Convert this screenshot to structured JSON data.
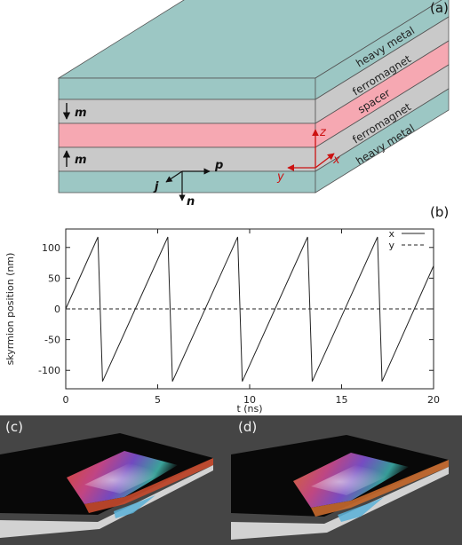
{
  "panel_a": {
    "label": "(a)",
    "layers": [
      "heavy metal",
      "ferromagnet",
      "spacer",
      "ferromagnet",
      "heavy metal"
    ],
    "vectors": {
      "m": "m",
      "p": "p",
      "j": "j",
      "n": "n"
    },
    "axes": {
      "x": "x",
      "y": "y",
      "z": "z"
    },
    "colors": {
      "heavy_metal": "#9cc7c4",
      "ferromagnet": "#c9c9c9",
      "spacer": "#f6a8b2",
      "axes": "#cc1111"
    }
  },
  "panel_b": {
    "label": "(b)"
  },
  "panel_c": {
    "label": "(c)"
  },
  "panel_d": {
    "label": "(d)"
  },
  "chart_data": {
    "type": "line",
    "title": "",
    "xlabel": "t (ns)",
    "ylabel": "skyrmion position (nm)",
    "xlim": [
      0,
      20
    ],
    "ylim": [
      -130,
      130
    ],
    "xticks": [
      0,
      5,
      10,
      15,
      20
    ],
    "yticks": [
      -100,
      -50,
      0,
      50,
      100
    ],
    "xtick_labels": [
      "0",
      "5",
      "10",
      "15",
      "20"
    ],
    "ytick_labels": [
      "-100",
      "-50",
      "0",
      "50",
      "100"
    ],
    "legend_position": "top-right",
    "series": [
      {
        "name": "x",
        "style": "solid",
        "x": [
          0,
          1.75,
          2.0,
          5.55,
          5.8,
          9.35,
          9.6,
          13.15,
          13.4,
          16.95,
          17.2,
          20
        ],
        "y": [
          0,
          117,
          -118,
          117,
          -118,
          117,
          -118,
          117,
          -118,
          117,
          -118,
          70
        ]
      },
      {
        "name": "y",
        "style": "dashed",
        "x": [
          0,
          20
        ],
        "y": [
          0,
          0
        ]
      }
    ]
  }
}
